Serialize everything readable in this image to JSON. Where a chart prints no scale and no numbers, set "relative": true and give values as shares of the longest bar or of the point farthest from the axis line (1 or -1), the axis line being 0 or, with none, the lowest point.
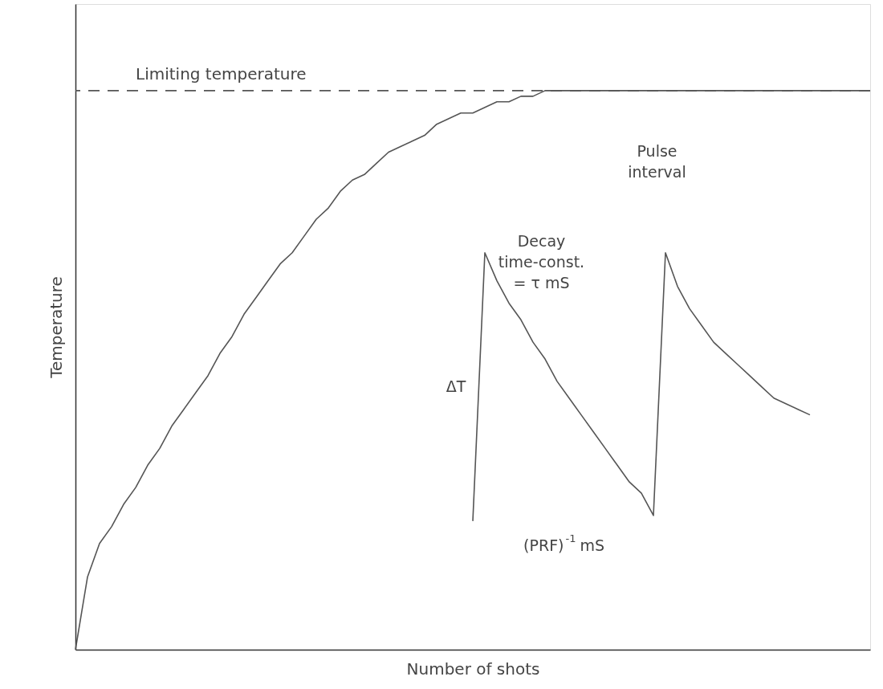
{
  "chart_data": {
    "type": "line",
    "relative": true,
    "xlabel": "Number of shots",
    "ylabel": "Temperature",
    "categories": [
      null,
      null,
      null,
      null,
      null,
      null,
      null,
      null,
      null,
      null,
      null,
      null,
      null,
      null,
      null,
      null,
      null,
      null,
      null,
      null,
      null,
      null,
      null,
      null,
      null,
      null,
      null,
      null,
      null,
      null,
      null,
      null,
      null,
      null,
      null,
      null,
      null,
      null,
      null,
      null,
      null,
      null,
      null,
      null,
      null,
      null,
      null,
      null,
      null,
      null,
      null,
      null,
      null,
      null,
      null,
      null,
      null,
      null,
      null,
      null,
      null,
      null,
      null,
      null,
      null,
      null,
      null
    ],
    "series": [
      {
        "color": "#555555",
        "values": [
          0,
          0.13,
          0.19,
          0.22,
          0.26,
          0.29,
          0.33,
          0.36,
          0.4,
          0.43,
          0.46,
          0.49,
          0.53,
          0.56,
          0.6,
          0.63,
          0.66,
          0.69,
          0.71,
          0.74,
          0.77,
          0.79,
          0.82,
          0.84,
          0.85,
          0.87,
          0.89,
          0.9,
          0.91,
          0.92,
          0.94,
          0.95,
          0.96,
          0.96,
          0.97,
          0.98,
          0.98,
          0.99,
          0.99,
          1,
          1,
          1,
          1,
          1,
          1,
          1,
          1,
          1,
          1,
          1,
          1,
          1,
          1,
          1,
          1,
          1,
          1,
          1,
          1,
          1,
          1,
          1,
          1,
          1,
          1,
          1,
          1
        ]
      },
      {
        "color": "#555555",
        "values": [
          null,
          null,
          null,
          null,
          null,
          null,
          null,
          null,
          null,
          null,
          null,
          null,
          null,
          null,
          null,
          null,
          null,
          null,
          null,
          null,
          null,
          null,
          null,
          null,
          null,
          null,
          null,
          null,
          null,
          null,
          null,
          null,
          null,
          0.23,
          0.71,
          0.66,
          0.62,
          0.59,
          0.55,
          0.52,
          0.48,
          0.45,
          0.42,
          0.39,
          0.36,
          0.33,
          0.3,
          0.28,
          0.24,
          0.71,
          0.65,
          0.61,
          0.58,
          0.55,
          0.53,
          0.51,
          0.49,
          0.47,
          0.45,
          0.44,
          0.43,
          0.42,
          null,
          null,
          null,
          null,
          null
        ]
      }
    ],
    "ref_lines": [
      {
        "axis": "y",
        "value": 1,
        "label": "Limiting temperature",
        "line_style": "dashed",
        "color": "#555555"
      }
    ],
    "annotations": [
      "Pulse\ninterval",
      "Decay\ntime-const.\n= τ mS",
      "ΔT",
      "(PRF)$^{-1}$ mS"
    ],
    "tick_labels": false,
    "grid": false,
    "line_style": "solid",
    "marker": "none"
  }
}
